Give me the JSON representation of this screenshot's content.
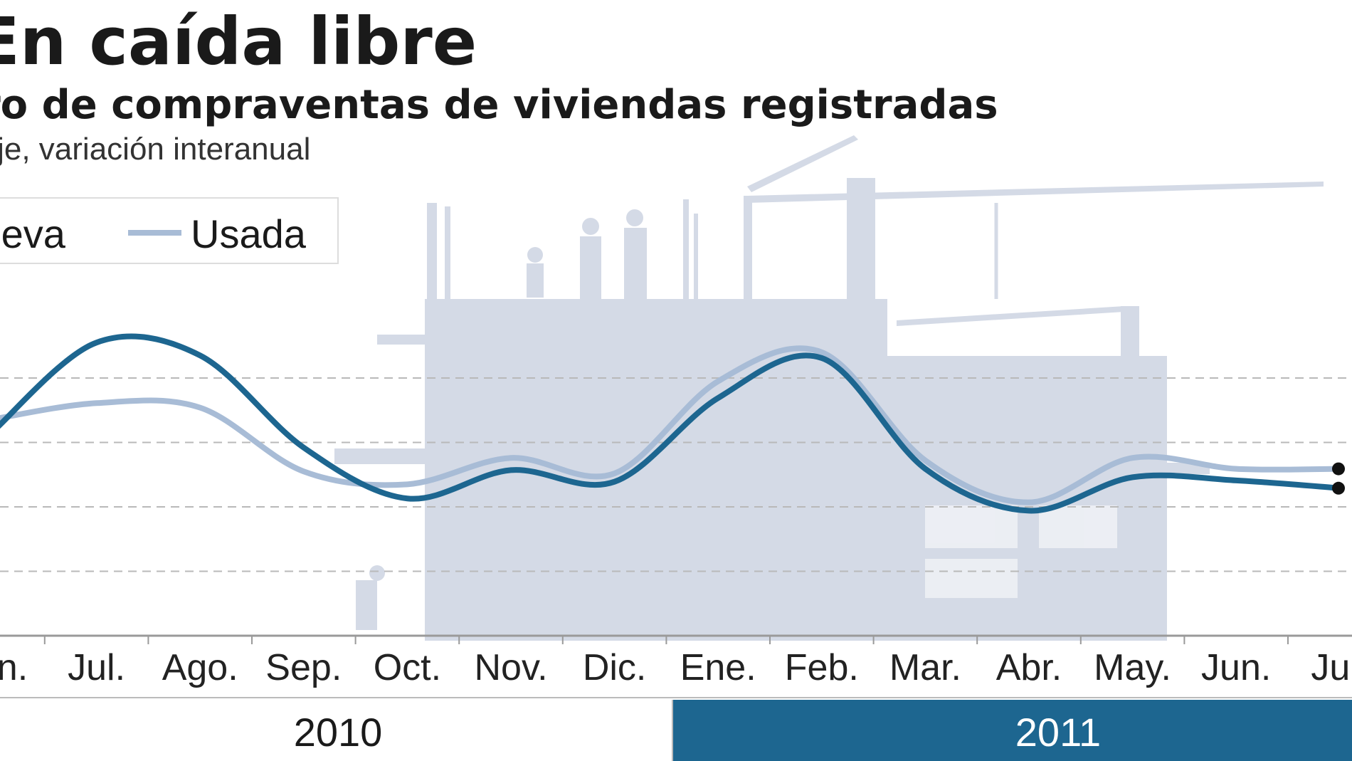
{
  "header": {
    "title": "En caída libre",
    "subtitle": "Número de compraventas de viviendas registradas",
    "unit": "Porcentaje, variación interanual"
  },
  "colors": {
    "nueva": "#1d6690",
    "usada": "#a8bcd6",
    "year_2011_band": "#1d6690",
    "background_art": "#d4dae6"
  },
  "illustration": "construction-site-silhouette",
  "chart_data": {
    "type": "line",
    "title": "En caída libre",
    "subtitle": "Número de compraventas de viviendas registradas",
    "ylabel": "Porcentaje, variación interanual",
    "xlabel": "",
    "grid": true,
    "legend_position": "top-left",
    "categories": [
      "Jun.",
      "Jul.",
      "Ago.",
      "Sep.",
      "Oct.",
      "Nov.",
      "Dic.",
      "Ene.",
      "Feb.",
      "Mar.",
      "Abr.",
      "May.",
      "Jun.",
      "Jul."
    ],
    "year_groups": [
      {
        "label": "2010",
        "from": 0,
        "to": 6
      },
      {
        "label": "2011",
        "from": 7,
        "to": 13
      }
    ],
    "ylim": [
      -40,
      20
    ],
    "yticks": [
      -30,
      -20,
      -10,
      0
    ],
    "series": [
      {
        "name": "Nueva",
        "color": "#1d6690",
        "values": [
          -8.3,
          5.5,
          3.5,
          -10.8,
          -18.7,
          -14.3,
          -16.1,
          -3.1,
          3.1,
          -14.1,
          -20.6,
          -15.4,
          -15.9,
          -17.1
        ]
      },
      {
        "name": "Usada",
        "color": "#a8bcd6",
        "values": [
          -6.4,
          -3.9,
          -4.6,
          -14.5,
          -16.5,
          -12.4,
          -14.8,
          -0.5,
          4.0,
          -12.8,
          -19.3,
          -12.4,
          -14.1,
          -14.1
        ]
      }
    ]
  }
}
